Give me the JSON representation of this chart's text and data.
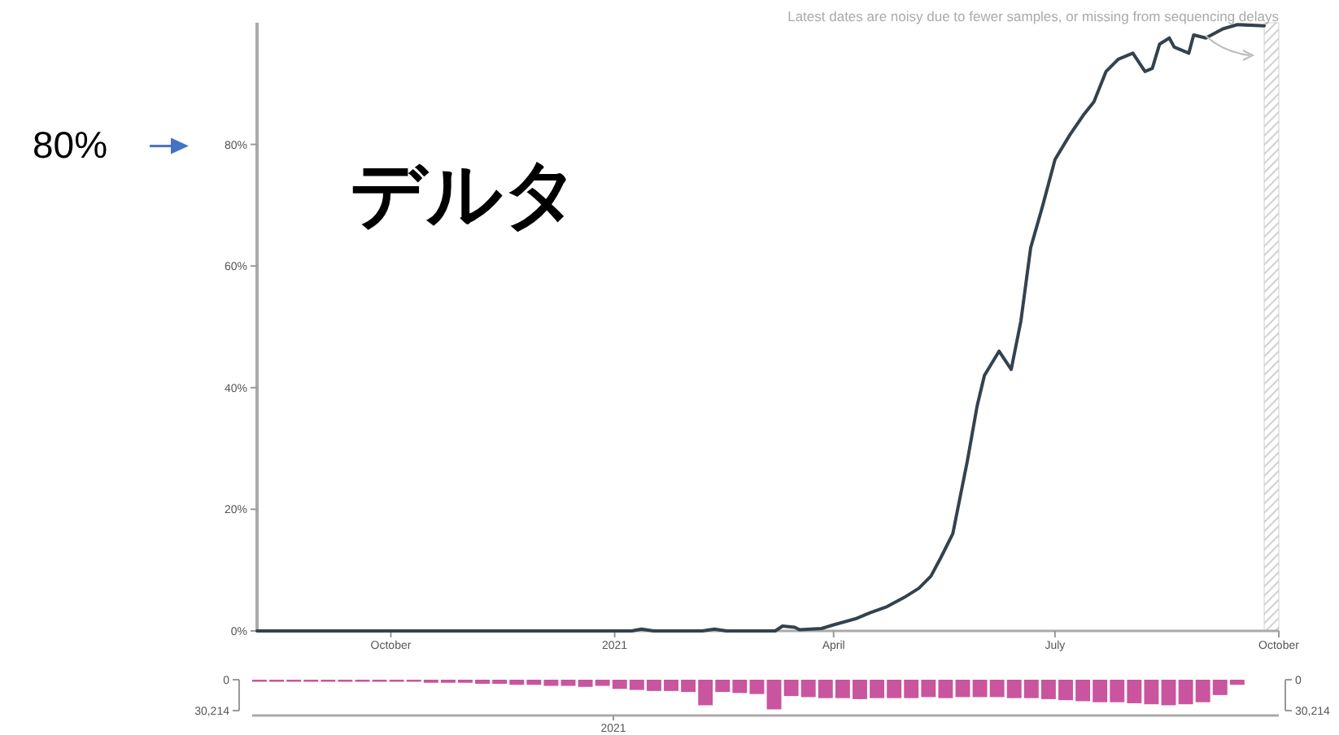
{
  "chart_data": [
    {
      "type": "line",
      "title": "デルタ",
      "annotations": [
        "Latest dates are noisy due to fewer samples, or missing from sequencing delays",
        "80%"
      ],
      "x": [
        "2020-08-07",
        "2020-12-31",
        "2021-01-08",
        "2021-01-12",
        "2021-01-17",
        "2021-02-06",
        "2021-02-11",
        "2021-02-16",
        "2021-03-08",
        "2021-03-11",
        "2021-03-16",
        "2021-03-18",
        "2021-03-27",
        "2021-04-01",
        "2021-04-10",
        "2021-04-16",
        "2021-04-23",
        "2021-04-30",
        "2021-05-06",
        "2021-05-11",
        "2021-05-15",
        "2021-05-20",
        "2021-05-23",
        "2021-05-26",
        "2021-05-30",
        "2021-06-02",
        "2021-06-08",
        "2021-06-13",
        "2021-06-17",
        "2021-06-21",
        "2021-06-26",
        "2021-07-01",
        "2021-07-07",
        "2021-07-13",
        "2021-07-17",
        "2021-07-22",
        "2021-07-27",
        "2021-08-02",
        "2021-08-07",
        "2021-08-10",
        "2021-08-13",
        "2021-08-17",
        "2021-08-19",
        "2021-08-25",
        "2021-08-27",
        "2021-09-01",
        "2021-09-08",
        "2021-09-14",
        "2021-09-25"
      ],
      "series": [
        {
          "color": "#34424f",
          "values": [
            0,
            0,
            0,
            0.3,
            0,
            0,
            0.3,
            0,
            0,
            0.8,
            0.6,
            0.2,
            0.4,
            1,
            2,
            3,
            4,
            5.5,
            7,
            9,
            12,
            16,
            22,
            28,
            37,
            42,
            46,
            43,
            51,
            63,
            70,
            77.5,
            81.5,
            85,
            87,
            92,
            94,
            95,
            92,
            92.5,
            96.5,
            97.5,
            96,
            95,
            98,
            97.5,
            99,
            99.7,
            99.5
          ]
        }
      ],
      "xlim": [
        "2020-08-07",
        "2021-10-01"
      ],
      "xticks": [
        {
          "value": "2020-10-01",
          "label": "October"
        },
        {
          "value": "2021-01-01",
          "label": "2021"
        },
        {
          "value": "2021-04-01",
          "label": "April"
        },
        {
          "value": "2021-07-01",
          "label": "July"
        },
        {
          "value": "2021-10-01",
          "label": "October"
        }
      ],
      "ylim": [
        0,
        100
      ],
      "yticks": [
        {
          "value": 0,
          "label": "0%"
        },
        {
          "value": 20,
          "label": "20%"
        },
        {
          "value": 40,
          "label": "40%"
        },
        {
          "value": 60,
          "label": "60%"
        },
        {
          "value": 80,
          "label": "80%"
        }
      ],
      "bands": [
        {
          "axis": "x",
          "from": "2021-09-25",
          "to": "2021-10-01",
          "color": "#d0d0d0"
        }
      ]
    },
    {
      "type": "bar",
      "color": "#c9559f",
      "annotations": [
        "2021"
      ],
      "categories": [
        null,
        null,
        null,
        null,
        null,
        null,
        null,
        null,
        null,
        null,
        null,
        null,
        null,
        null,
        null,
        null,
        null,
        null,
        null,
        null,
        null,
        null,
        null,
        null,
        null,
        null,
        null,
        null,
        null,
        null,
        null,
        null,
        null,
        null,
        null,
        null,
        null,
        null,
        null,
        null,
        null,
        null,
        null,
        null,
        null,
        null,
        null,
        null,
        null,
        null,
        null,
        null,
        null,
        null,
        null,
        null,
        null,
        null,
        null,
        null
      ],
      "values": [
        2000,
        2000,
        2000,
        2000,
        2000,
        2000,
        2000,
        2000,
        2000,
        2000,
        3000,
        3000,
        3000,
        4000,
        4000,
        5000,
        5000,
        6000,
        6000,
        7000,
        6000,
        9000,
        10000,
        11000,
        11000,
        12000,
        25000,
        12000,
        13000,
        14000,
        29000,
        16000,
        17000,
        18000,
        18000,
        19000,
        18000,
        18000,
        18000,
        17000,
        18000,
        17000,
        17000,
        17000,
        18000,
        18000,
        19000,
        20000,
        21000,
        22000,
        22000,
        23000,
        24000,
        25000,
        24000,
        22000,
        15000,
        5000,
        null,
        null
      ],
      "ylim": [
        30214,
        0
      ],
      "yticks": [
        {
          "value": 0,
          "label": "0"
        },
        {
          "value": 30214,
          "label": "30,214"
        }
      ],
      "y2lim": [
        30214,
        0
      ],
      "y2ticks": [
        {
          "value": 0,
          "label": "0"
        },
        {
          "value": 30214,
          "label": "30,214"
        }
      ]
    }
  ]
}
